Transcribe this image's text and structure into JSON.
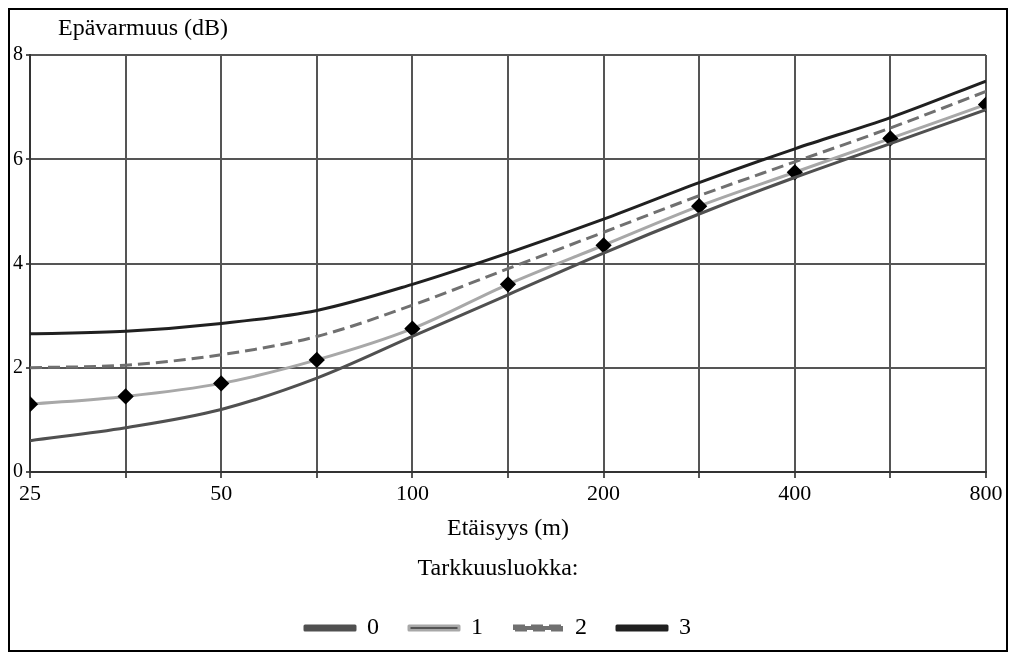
{
  "chart_data": {
    "type": "line",
    "ylabel": "Epävarmuus (dB)",
    "xlabel": "Etäisyys (m)",
    "legend_title": "Tarkkuusluokka:",
    "legend": "bottom",
    "grid": true,
    "log": "x",
    "x": [
      25,
      35.36,
      50,
      70.71,
      100,
      141.4,
      200,
      282.8,
      400,
      565.7,
      800
    ],
    "xlim": [
      25,
      800
    ],
    "xticks": [
      25,
      {
        "value": 35.36,
        "label": null
      },
      50,
      {
        "value": 70.71,
        "label": null
      },
      100,
      {
        "value": 141.4,
        "label": null
      },
      200,
      {
        "value": 282.8,
        "label": null
      },
      400,
      {
        "value": 565.7,
        "label": null
      },
      800
    ],
    "ylim": [
      0,
      8
    ],
    "yticks": [
      0,
      2,
      4,
      6,
      8
    ],
    "series": [
      {
        "name": "0",
        "color": "#505050",
        "line_style": "solid",
        "marker": "none",
        "values": [
          0.6,
          0.85,
          1.2,
          1.8,
          2.6,
          3.4,
          4.2,
          4.95,
          5.65,
          6.3,
          6.95
        ]
      },
      {
        "name": "1",
        "color": "#a8a8a8",
        "line_style": "solid",
        "marker": "diamond",
        "values": [
          1.3,
          1.45,
          1.7,
          2.15,
          2.75,
          3.6,
          4.35,
          5.1,
          5.75,
          6.4,
          7.05
        ]
      },
      {
        "name": "2",
        "color": "#707070",
        "line_style": "dashed",
        "marker": "none",
        "values": [
          2.0,
          2.05,
          2.25,
          2.6,
          3.2,
          3.9,
          4.6,
          5.3,
          5.95,
          6.6,
          7.3
        ]
      },
      {
        "name": "3",
        "color": "#202020",
        "line_style": "solid",
        "marker": "none",
        "values": [
          2.65,
          2.7,
          2.85,
          3.1,
          3.6,
          4.2,
          4.85,
          5.55,
          6.2,
          6.8,
          7.5
        ]
      }
    ]
  }
}
